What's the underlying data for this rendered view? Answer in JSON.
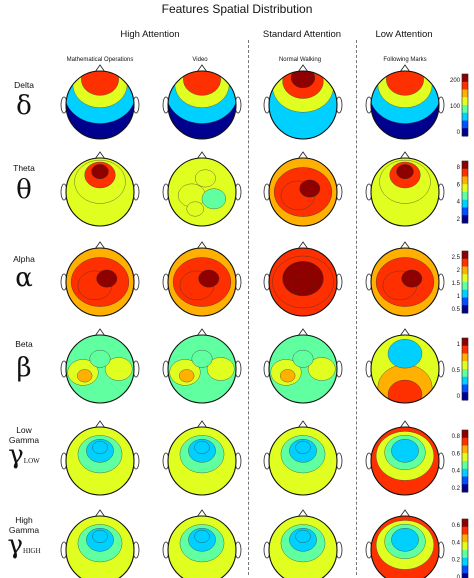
{
  "figure": {
    "title": "Features Spatial Distribution",
    "groups": [
      {
        "label": "High Attention"
      },
      {
        "label": "Standard Attention"
      },
      {
        "label": "Low Attention"
      }
    ],
    "conditions": [
      {
        "label": "Mathematical Operations"
      },
      {
        "label": "Video"
      },
      {
        "label": "Normal Walking"
      },
      {
        "label": "Following Marks"
      }
    ],
    "bands": [
      {
        "name": "Delta",
        "symbol": "δ",
        "subscript": "",
        "colorbar_ticks": [
          "200",
          "100",
          "0"
        ],
        "maps": [
          {
            "condition": "Mathematical Operations",
            "pattern": "frontal-high"
          },
          {
            "condition": "Video",
            "pattern": "frontal-high"
          },
          {
            "condition": "Normal Walking",
            "pattern": "frontal-peak"
          },
          {
            "condition": "Following Marks",
            "pattern": "frontal-high"
          }
        ]
      },
      {
        "name": "Theta",
        "symbol": "θ",
        "subscript": "",
        "colorbar_ticks": [
          "8",
          "6",
          "4",
          "2"
        ],
        "maps": [
          {
            "condition": "Mathematical Operations",
            "pattern": "frontal-mid"
          },
          {
            "condition": "Video",
            "pattern": "mottled"
          },
          {
            "condition": "Normal Walking",
            "pattern": "broad-high"
          },
          {
            "condition": "Following Marks",
            "pattern": "frontal-mid"
          }
        ]
      },
      {
        "name": "Alpha",
        "symbol": "α",
        "subscript": "",
        "colorbar_ticks": [
          "2.5",
          "2",
          "1.5",
          "1",
          "0.5"
        ],
        "maps": [
          {
            "condition": "Mathematical Operations",
            "pattern": "broad-high"
          },
          {
            "condition": "Video",
            "pattern": "broad-high"
          },
          {
            "condition": "Normal Walking",
            "pattern": "very-high"
          },
          {
            "condition": "Following Marks",
            "pattern": "broad-high"
          }
        ]
      },
      {
        "name": "Beta",
        "symbol": "β",
        "subscript": "",
        "colorbar_ticks": [
          "1",
          "0.5",
          "0"
        ],
        "maps": [
          {
            "condition": "Mathematical Operations",
            "pattern": "lateral-high"
          },
          {
            "condition": "Video",
            "pattern": "lateral-high"
          },
          {
            "condition": "Normal Walking",
            "pattern": "lateral-high"
          },
          {
            "condition": "Following Marks",
            "pattern": "posterior-high"
          }
        ]
      },
      {
        "name": "Low Gamma",
        "symbol": "γ",
        "subscript": "LOW",
        "colorbar_ticks": [
          "0.8",
          "0.6",
          "0.4",
          "0.2"
        ],
        "maps": [
          {
            "condition": "Mathematical Operations",
            "pattern": "central-low"
          },
          {
            "condition": "Video",
            "pattern": "central-low"
          },
          {
            "condition": "Normal Walking",
            "pattern": "central-low"
          },
          {
            "condition": "Following Marks",
            "pattern": "central-low-strong"
          }
        ]
      },
      {
        "name": "High Gamma",
        "symbol": "γ",
        "subscript": "HIGH",
        "colorbar_ticks": [
          "0.6",
          "0.4",
          "0.2",
          "0"
        ],
        "maps": [
          {
            "condition": "Mathematical Operations",
            "pattern": "central-low"
          },
          {
            "condition": "Video",
            "pattern": "central-low"
          },
          {
            "condition": "Normal Walking",
            "pattern": "central-low"
          },
          {
            "condition": "Following Marks",
            "pattern": "central-low-strong"
          }
        ]
      }
    ],
    "colormap": [
      "#00008f",
      "#0050ff",
      "#00d0ff",
      "#60ff9f",
      "#e0ff20",
      "#ffb000",
      "#ff3000",
      "#8f0000"
    ]
  }
}
